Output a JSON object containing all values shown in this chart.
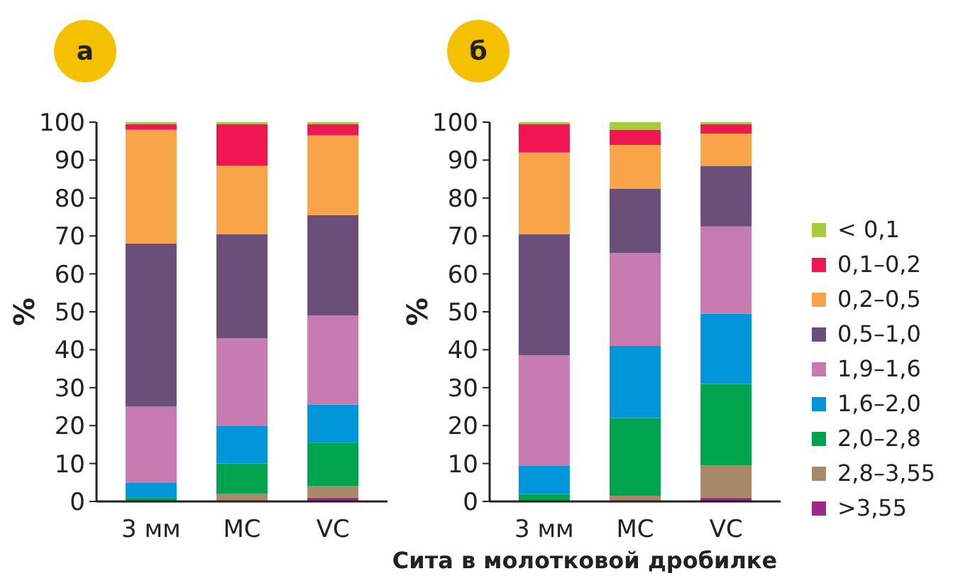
{
  "chart_data": [
    {
      "type": "bar",
      "title": "а",
      "ylabel": "%",
      "categories": [
        "3 мм",
        "МС",
        "VC"
      ],
      "stacked": true,
      "ylim": [
        0,
        100
      ],
      "yticks": [
        0,
        10,
        20,
        30,
        40,
        50,
        60,
        70,
        80,
        90,
        100
      ],
      "legend": false,
      "series": [
        {
          "color": "#9b2a8a",
          "values": [
            0,
            0,
            1
          ]
        },
        {
          "color": "#a88a6a",
          "values": [
            0,
            2,
            3
          ]
        },
        {
          "color": "#00a44e",
          "values": [
            1,
            8,
            11.5
          ]
        },
        {
          "color": "#0096d9",
          "values": [
            4,
            10,
            10
          ]
        },
        {
          "color": "#c77bb1",
          "values": [
            20,
            23,
            23.5
          ]
        },
        {
          "color": "#6b4f7b",
          "values": [
            43,
            27.5,
            26.5
          ]
        },
        {
          "color": "#f8a54a",
          "values": [
            30,
            18,
            21
          ]
        },
        {
          "color": "#ee1752",
          "values": [
            1.5,
            11,
            3
          ]
        },
        {
          "color": "#a5cd39",
          "values": [
            0.5,
            0.5,
            0.5
          ]
        }
      ]
    },
    {
      "type": "bar",
      "title": "б",
      "ylabel": "%",
      "xlabel": "Сита в молотковой дробилке",
      "categories": [
        "3 мм",
        "МС",
        "VC"
      ],
      "stacked": true,
      "ylim": [
        0,
        100
      ],
      "yticks": [
        0,
        10,
        20,
        30,
        40,
        50,
        60,
        70,
        80,
        90,
        100
      ],
      "legend": "right",
      "series": [
        {
          "name": ">3,55",
          "color": "#9b2a8a",
          "values": [
            0,
            0,
            1
          ]
        },
        {
          "name": "2,8–3,55",
          "color": "#a88a6a",
          "values": [
            0,
            1.5,
            8.5
          ]
        },
        {
          "name": "2,0–2,8",
          "color": "#00a44e",
          "values": [
            2,
            20.5,
            21.5
          ]
        },
        {
          "name": "1,6–2,0",
          "color": "#0096d9",
          "values": [
            7.5,
            19,
            18.5
          ]
        },
        {
          "name": "1,9–1,6",
          "color": "#c77bb1",
          "values": [
            29,
            24.5,
            23
          ]
        },
        {
          "name": "0,5–1,0",
          "color": "#6b4f7b",
          "values": [
            32,
            17,
            16
          ]
        },
        {
          "name": "0,2–0,5",
          "color": "#f8a54a",
          "values": [
            21.5,
            11.5,
            8.5
          ]
        },
        {
          "name": "0,1–0,2",
          "color": "#ee1752",
          "values": [
            7.5,
            4,
            2.5
          ]
        },
        {
          "name": "< 0,1",
          "color": "#a5cd39",
          "values": [
            0.5,
            2,
            0.5
          ]
        }
      ]
    }
  ]
}
